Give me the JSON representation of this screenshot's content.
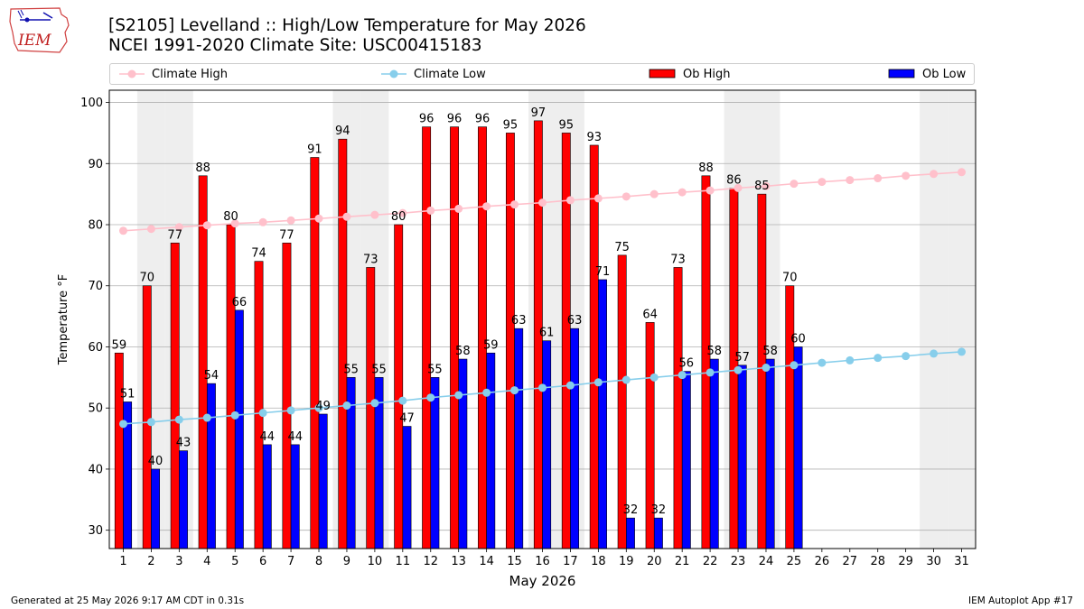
{
  "header": {
    "title_line1": "[S2105] Levelland :: High/Low Temperature for May 2026",
    "title_line2": "NCEI 1991-2020 Climate Site: USC00415183",
    "logo_text": "IEM"
  },
  "legend": [
    {
      "label": "Climate High",
      "color": "#ffc0cb",
      "kind": "line"
    },
    {
      "label": "Climate Low",
      "color": "#87ceeb",
      "kind": "line"
    },
    {
      "label": "Ob High",
      "color": "#ff0000",
      "kind": "bar"
    },
    {
      "label": "Ob Low",
      "color": "#0000ff",
      "kind": "bar"
    }
  ],
  "footer": {
    "left": "Generated at 25 May 2026 9:17 AM CDT in 0.31s",
    "right": "IEM Autoplot App #17"
  },
  "chart_data": {
    "type": "bar",
    "title": "[S2105] Levelland :: High/Low Temperature for May 2026",
    "subtitle": "NCEI 1991-2020 Climate Site: USC00415183",
    "xlabel": "May 2026",
    "ylabel": "Temperature °F",
    "ylim": [
      27,
      102
    ],
    "yticks": [
      30,
      40,
      50,
      60,
      70,
      80,
      90,
      100
    ],
    "grid": true,
    "legend_position": "top",
    "categories": [
      "1",
      "2",
      "3",
      "4",
      "5",
      "6",
      "7",
      "8",
      "9",
      "10",
      "11",
      "12",
      "13",
      "14",
      "15",
      "16",
      "17",
      "18",
      "19",
      "20",
      "21",
      "22",
      "23",
      "24",
      "25",
      "26",
      "27",
      "28",
      "29",
      "30",
      "31"
    ],
    "weekend_shaded_days": [
      2,
      3,
      9,
      10,
      16,
      17,
      23,
      24,
      30,
      31
    ],
    "series": [
      {
        "name": "Ob High",
        "type": "bar",
        "color": "#ff0000",
        "values": [
          59,
          70,
          77,
          88,
          80,
          74,
          77,
          91,
          94,
          73,
          80,
          96,
          96,
          96,
          95,
          97,
          95,
          93,
          75,
          64,
          73,
          88,
          86,
          85,
          70,
          null,
          null,
          null,
          null,
          null,
          null
        ]
      },
      {
        "name": "Ob Low",
        "type": "bar",
        "color": "#0000ff",
        "values": [
          51,
          40,
          43,
          54,
          66,
          44,
          44,
          49,
          55,
          55,
          47,
          55,
          58,
          59,
          63,
          61,
          63,
          71,
          32,
          32,
          56,
          58,
          57,
          58,
          60,
          null,
          null,
          null,
          null,
          null,
          null
        ]
      },
      {
        "name": "Climate High",
        "type": "line",
        "color": "#ffc0cb",
        "values": [
          79.0,
          79.3,
          79.6,
          79.9,
          80.2,
          80.4,
          80.7,
          81.0,
          81.3,
          81.6,
          81.9,
          82.3,
          82.6,
          83.0,
          83.3,
          83.6,
          84.0,
          84.3,
          84.6,
          85.0,
          85.3,
          85.6,
          86.0,
          86.3,
          86.7,
          87.0,
          87.3,
          87.6,
          88.0,
          88.3,
          88.6
        ]
      },
      {
        "name": "Climate Low",
        "type": "line",
        "color": "#87ceeb",
        "values": [
          47.4,
          47.7,
          48.1,
          48.4,
          48.8,
          49.2,
          49.6,
          50.0,
          50.4,
          50.8,
          51.2,
          51.7,
          52.1,
          52.5,
          52.9,
          53.3,
          53.7,
          54.2,
          54.6,
          55.0,
          55.4,
          55.8,
          56.2,
          56.6,
          57.0,
          57.4,
          57.8,
          58.2,
          58.5,
          58.9,
          59.2
        ]
      }
    ]
  }
}
